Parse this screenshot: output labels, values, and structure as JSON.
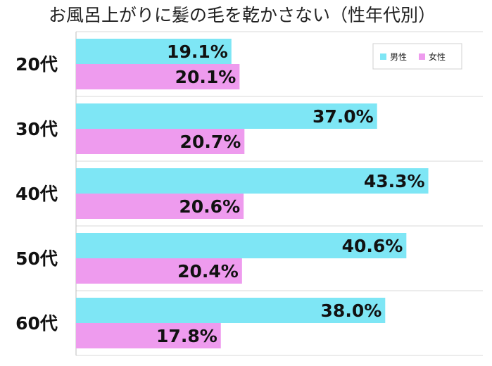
{
  "chart_data": {
    "type": "bar",
    "orientation": "horizontal",
    "title": "お風呂上がりに髪の毛を乾かさない（性年代別）",
    "categories": [
      "20代",
      "30代",
      "40代",
      "50代",
      "60代"
    ],
    "series": [
      {
        "name": "男性",
        "color": "#7EE6F5",
        "values": [
          19.1,
          37.0,
          43.3,
          40.6,
          38.0
        ]
      },
      {
        "name": "女性",
        "color": "#EE9BEE",
        "values": [
          20.1,
          20.7,
          20.6,
          20.4,
          17.8
        ]
      }
    ],
    "value_labels": [
      [
        "19.1%",
        "37.0%",
        "43.3%",
        "40.6%",
        "38.0%"
      ],
      [
        "20.1%",
        "20.7%",
        "20.6%",
        "20.4%",
        "17.8%"
      ]
    ],
    "xlim": [
      0,
      50
    ],
    "grid": true,
    "legend_position": "top-right"
  }
}
